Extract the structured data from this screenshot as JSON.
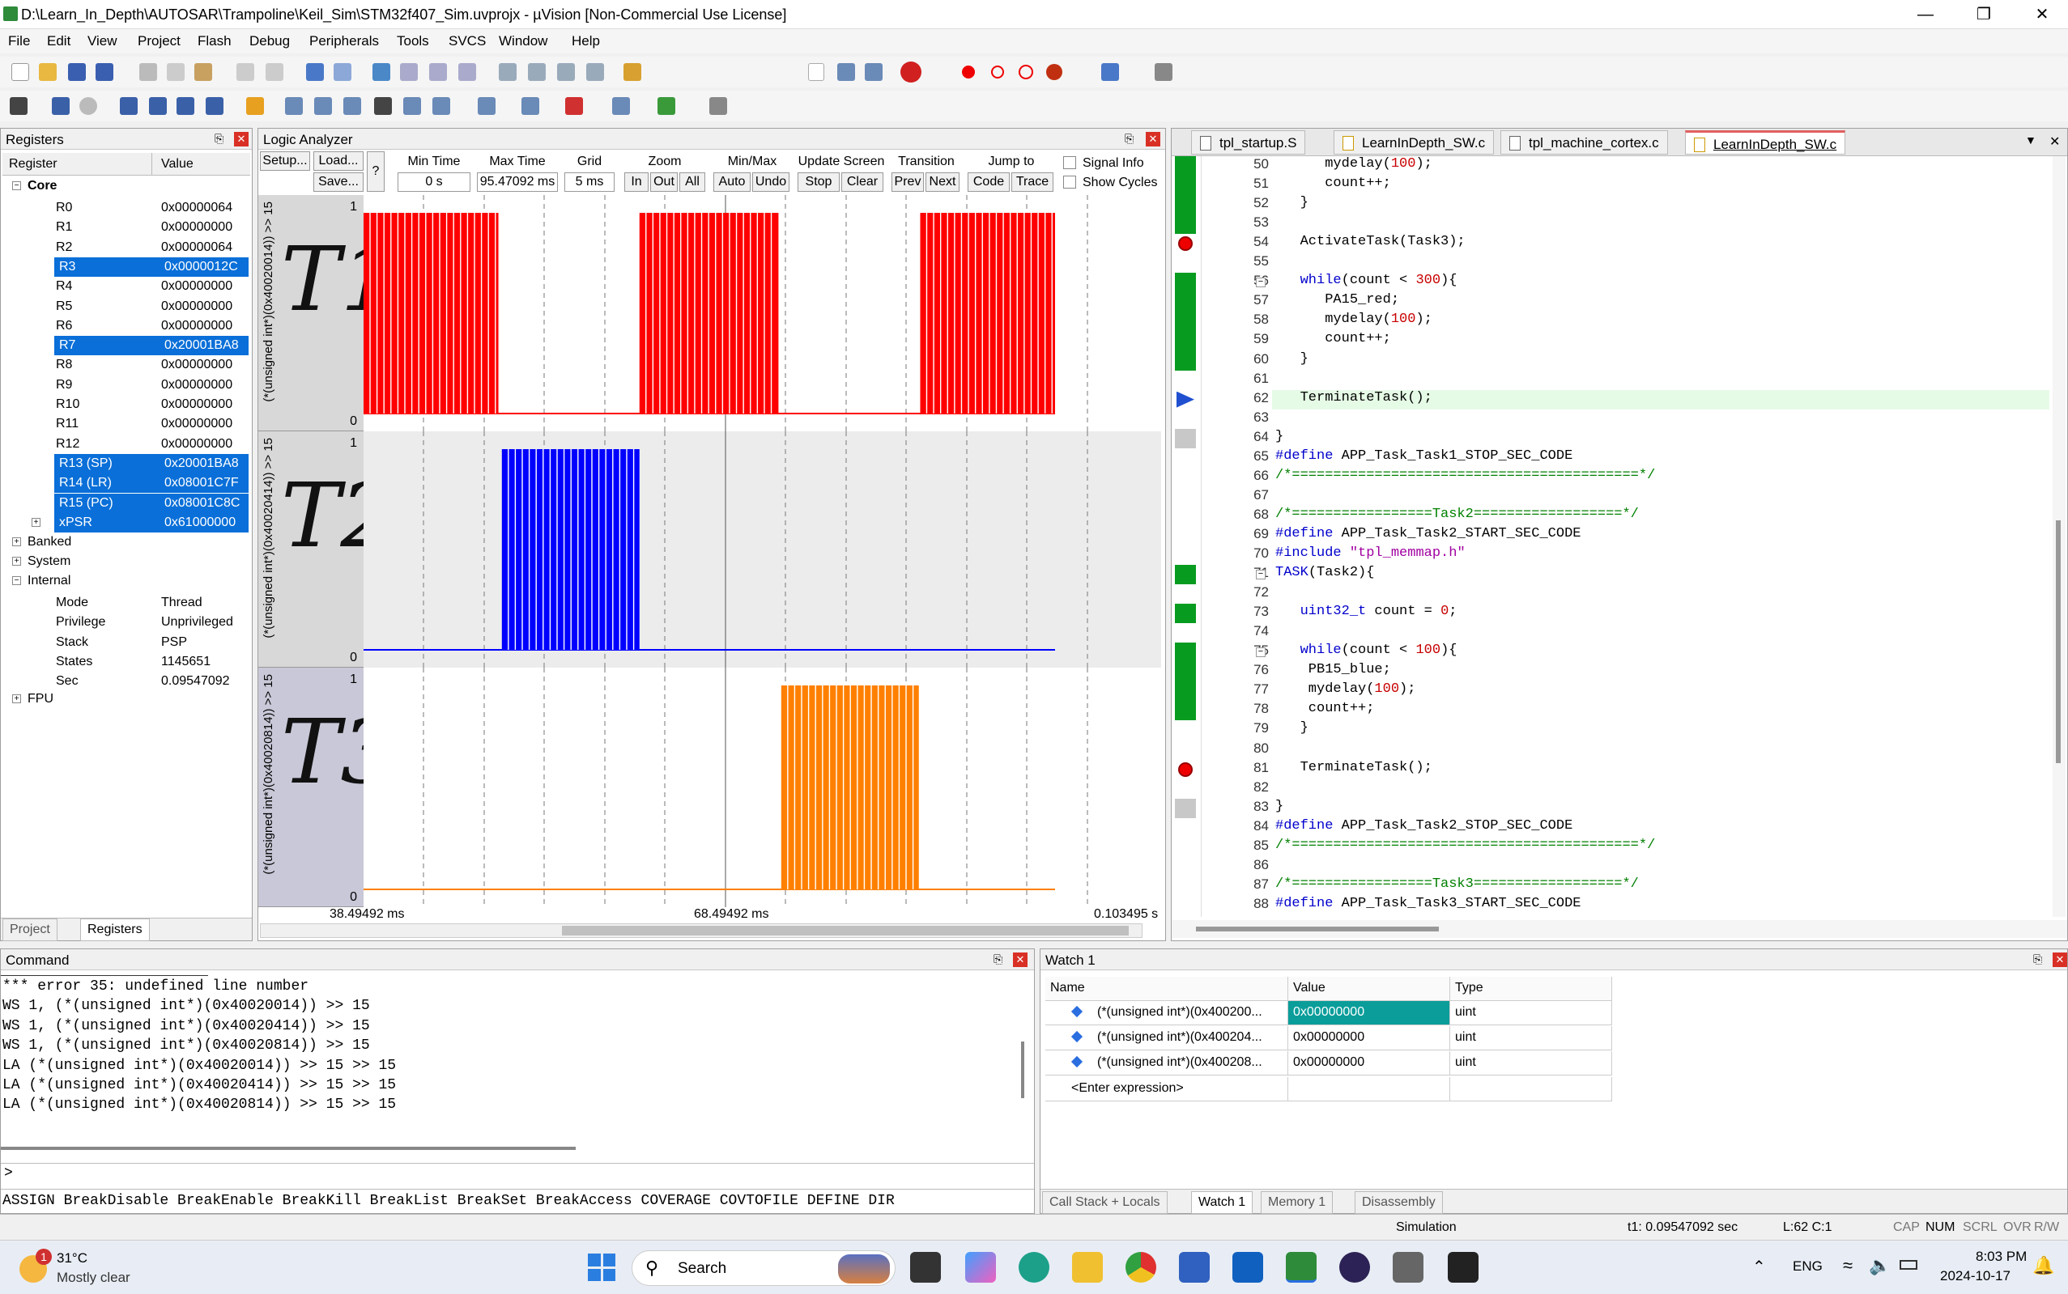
{
  "window": {
    "title": "D:\\Learn_In_Depth\\AUTOSAR\\Trampoline\\Keil_Sim\\STM32f407_Sim.uvprojx - µVision  [Non-Commercial Use License]"
  },
  "menu": [
    "File",
    "Edit",
    "View",
    "Project",
    "Flash",
    "Debug",
    "Peripherals",
    "Tools",
    "SVCS",
    "Window",
    "Help"
  ],
  "registers": {
    "title": "Registers",
    "col_register": "Register",
    "col_value": "Value",
    "core_label": "Core",
    "core": [
      {
        "name": "R0",
        "value": "0x00000064",
        "sel": false
      },
      {
        "name": "R1",
        "value": "0x00000000",
        "sel": false
      },
      {
        "name": "R2",
        "value": "0x00000064",
        "sel": false
      },
      {
        "name": "R3",
        "value": "0x0000012C",
        "sel": true
      },
      {
        "name": "R4",
        "value": "0x00000000",
        "sel": false
      },
      {
        "name": "R5",
        "value": "0x00000000",
        "sel": false
      },
      {
        "name": "R6",
        "value": "0x00000000",
        "sel": false
      },
      {
        "name": "R7",
        "value": "0x20001BA8",
        "sel": true
      },
      {
        "name": "R8",
        "value": "0x00000000",
        "sel": false
      },
      {
        "name": "R9",
        "value": "0x00000000",
        "sel": false
      },
      {
        "name": "R10",
        "value": "0x00000000",
        "sel": false
      },
      {
        "name": "R11",
        "value": "0x00000000",
        "sel": false
      },
      {
        "name": "R12",
        "value": "0x00000000",
        "sel": false
      },
      {
        "name": "R13 (SP)",
        "value": "0x20001BA8",
        "sel": true
      },
      {
        "name": "R14 (LR)",
        "value": "0x08001C7F",
        "sel": true
      },
      {
        "name": "R15 (PC)",
        "value": "0x08001C8C",
        "sel": true
      },
      {
        "name": "xPSR",
        "value": "0x61000000",
        "sel": true
      }
    ],
    "groups": [
      "Banked",
      "System",
      "Internal"
    ],
    "internal": [
      {
        "name": "Mode",
        "value": "Thread"
      },
      {
        "name": "Privilege",
        "value": "Unprivileged"
      },
      {
        "name": "Stack",
        "value": "PSP"
      },
      {
        "name": "States",
        "value": "1145651"
      },
      {
        "name": "Sec",
        "value": "0.09547092"
      }
    ],
    "fpu": "FPU",
    "tab_project": "Project",
    "tab_registers": "Registers"
  },
  "la": {
    "title": "Logic Analyzer",
    "setup": "Setup...",
    "load": "Load...",
    "save": "Save...",
    "help": "?",
    "min_time_lbl": "Min Time",
    "min_time": "0 s",
    "max_time_lbl": "Max Time",
    "max_time": "95.47092 ms",
    "grid_lbl": "Grid",
    "grid": "5 ms",
    "zoom_lbl": "Zoom",
    "zin": "In",
    "zout": "Out",
    "zall": "All",
    "minmax_lbl": "Min/Max",
    "auto": "Auto",
    "undo": "Undo",
    "update_lbl": "Update Screen",
    "stop": "Stop",
    "clear": "Clear",
    "trans_lbl": "Transition",
    "prev": "Prev",
    "next": "Next",
    "jump_lbl": "Jump to",
    "code": "Code",
    "trace": "Trace",
    "signal_info": "Signal Info",
    "show_cycles": "Show Cycles",
    "t_left": "38.49492 ms",
    "t_mid": "68.49492 ms",
    "t_right": "0.103495 s",
    "signals": [
      {
        "label": "(*(unsigned int*)(0x40020014)) >> 15",
        "hand": "T1",
        "color": "#ff0000",
        "bursts": [
          [
            0,
            0.195
          ],
          [
            0.399,
            0.6
          ],
          [
            0.805,
            1.0
          ]
        ]
      },
      {
        "label": "(*(unsigned int*)(0x40020414)) >> 15",
        "hand": "T2",
        "color": "#0000ff",
        "bursts": [
          [
            0.2,
            0.399
          ]
        ]
      },
      {
        "label": "(*(unsigned int*)(0x40020814)) >> 15",
        "hand": "T3",
        "color": "#ff8000",
        "bursts": [
          [
            0.604,
            0.803
          ]
        ]
      }
    ],
    "y_one": "1",
    "y_zero": "0"
  },
  "editor": {
    "tabs": [
      "tpl_startup.S",
      "LearnInDepth_SW.c",
      "tpl_machine_cortex.c",
      "LearnInDepth_SW.c"
    ],
    "lines": [
      {
        "n": "50",
        "t": "      mydelay(100);"
      },
      {
        "n": "51",
        "t": "      count++;"
      },
      {
        "n": "52",
        "t": "   }"
      },
      {
        "n": "53",
        "t": ""
      },
      {
        "n": "54",
        "t": "   ActivateTask(Task3);"
      },
      {
        "n": "55",
        "t": ""
      },
      {
        "n": "56",
        "t": "   while(count < 300){"
      },
      {
        "n": "57",
        "t": "      PA15_red;"
      },
      {
        "n": "58",
        "t": "      mydelay(100);"
      },
      {
        "n": "59",
        "t": "      count++;"
      },
      {
        "n": "60",
        "t": "   }"
      },
      {
        "n": "61",
        "t": ""
      },
      {
        "n": "62",
        "t": "   TerminateTask();"
      },
      {
        "n": "63",
        "t": ""
      },
      {
        "n": "64",
        "t": "}"
      },
      {
        "n": "65",
        "t": "#define APP_Task_Task1_STOP_SEC_CODE"
      },
      {
        "n": "66",
        "t": "/*==========================================*/"
      },
      {
        "n": "67",
        "t": ""
      },
      {
        "n": "68",
        "t": "/*=================Task2==================*/"
      },
      {
        "n": "69",
        "t": "#define APP_Task_Task2_START_SEC_CODE"
      },
      {
        "n": "70",
        "t": "#include \"tpl_memmap.h\""
      },
      {
        "n": "71",
        "t": "TASK(Task2){"
      },
      {
        "n": "72",
        "t": ""
      },
      {
        "n": "73",
        "t": "   uint32_t count = 0;"
      },
      {
        "n": "74",
        "t": ""
      },
      {
        "n": "75",
        "t": "   while(count < 100){"
      },
      {
        "n": "76",
        "t": "    PB15_blue;"
      },
      {
        "n": "77",
        "t": "    mydelay(100);"
      },
      {
        "n": "78",
        "t": "    count++;"
      },
      {
        "n": "79",
        "t": "   }"
      },
      {
        "n": "80",
        "t": ""
      },
      {
        "n": "81",
        "t": "   TerminateTask();"
      },
      {
        "n": "82",
        "t": ""
      },
      {
        "n": "83",
        "t": "}"
      },
      {
        "n": "84",
        "t": "#define APP_Task_Task2_STOP_SEC_CODE"
      },
      {
        "n": "85",
        "t": "/*==========================================*/"
      },
      {
        "n": "86",
        "t": ""
      },
      {
        "n": "87",
        "t": "/*=================Task3==================*/"
      },
      {
        "n": "88",
        "t": "#define APP_Task_Task3_START_SEC_CODE"
      }
    ]
  },
  "command": {
    "title": "Command",
    "lines": [
      "*** error 35: undefined line number",
      "WS 1, (*(unsigned int*)(0x40020014)) >> 15",
      "WS 1, (*(unsigned int*)(0x40020414)) >> 15",
      "WS 1, (*(unsigned int*)(0x40020814)) >> 15",
      "LA (*(unsigned int*)(0x40020014)) >> 15 >> 15",
      "LA (*(unsigned int*)(0x40020414)) >> 15 >> 15",
      "LA (*(unsigned int*)(0x40020814)) >> 15 >> 15"
    ],
    "prompt": ">",
    "hints": "ASSIGN BreakDisable BreakEnable BreakKill BreakList BreakSet BreakAccess COVERAGE COVTOFILE DEFINE DIR"
  },
  "watch": {
    "title": "Watch 1",
    "col_name": "Name",
    "col_value": "Value",
    "col_type": "Type",
    "rows": [
      {
        "name": "(*(unsigned int*)(0x400200...",
        "value": "0x00000000",
        "type": "uint"
      },
      {
        "name": "(*(unsigned int*)(0x400204...",
        "value": "0x00000000",
        "type": "uint"
      },
      {
        "name": "(*(unsigned int*)(0x400208...",
        "value": "0x00000000",
        "type": "uint"
      }
    ],
    "enter": "<Enter expression>",
    "tabs": [
      "Call Stack + Locals",
      "Watch 1",
      "Memory 1",
      "Disassembly"
    ]
  },
  "status": {
    "mode": "Simulation",
    "time": "t1: 0.09547092 sec",
    "pos": "L:62 C:1",
    "flags": [
      "CAP",
      "NUM",
      "SCRL",
      "OVR",
      "R/W"
    ]
  },
  "taskbar": {
    "temp": "31°C",
    "weather": "Mostly clear",
    "badge": "1",
    "search": "Search",
    "lang": "ENG",
    "time": "8:03 PM",
    "date": "2024-10-17"
  }
}
